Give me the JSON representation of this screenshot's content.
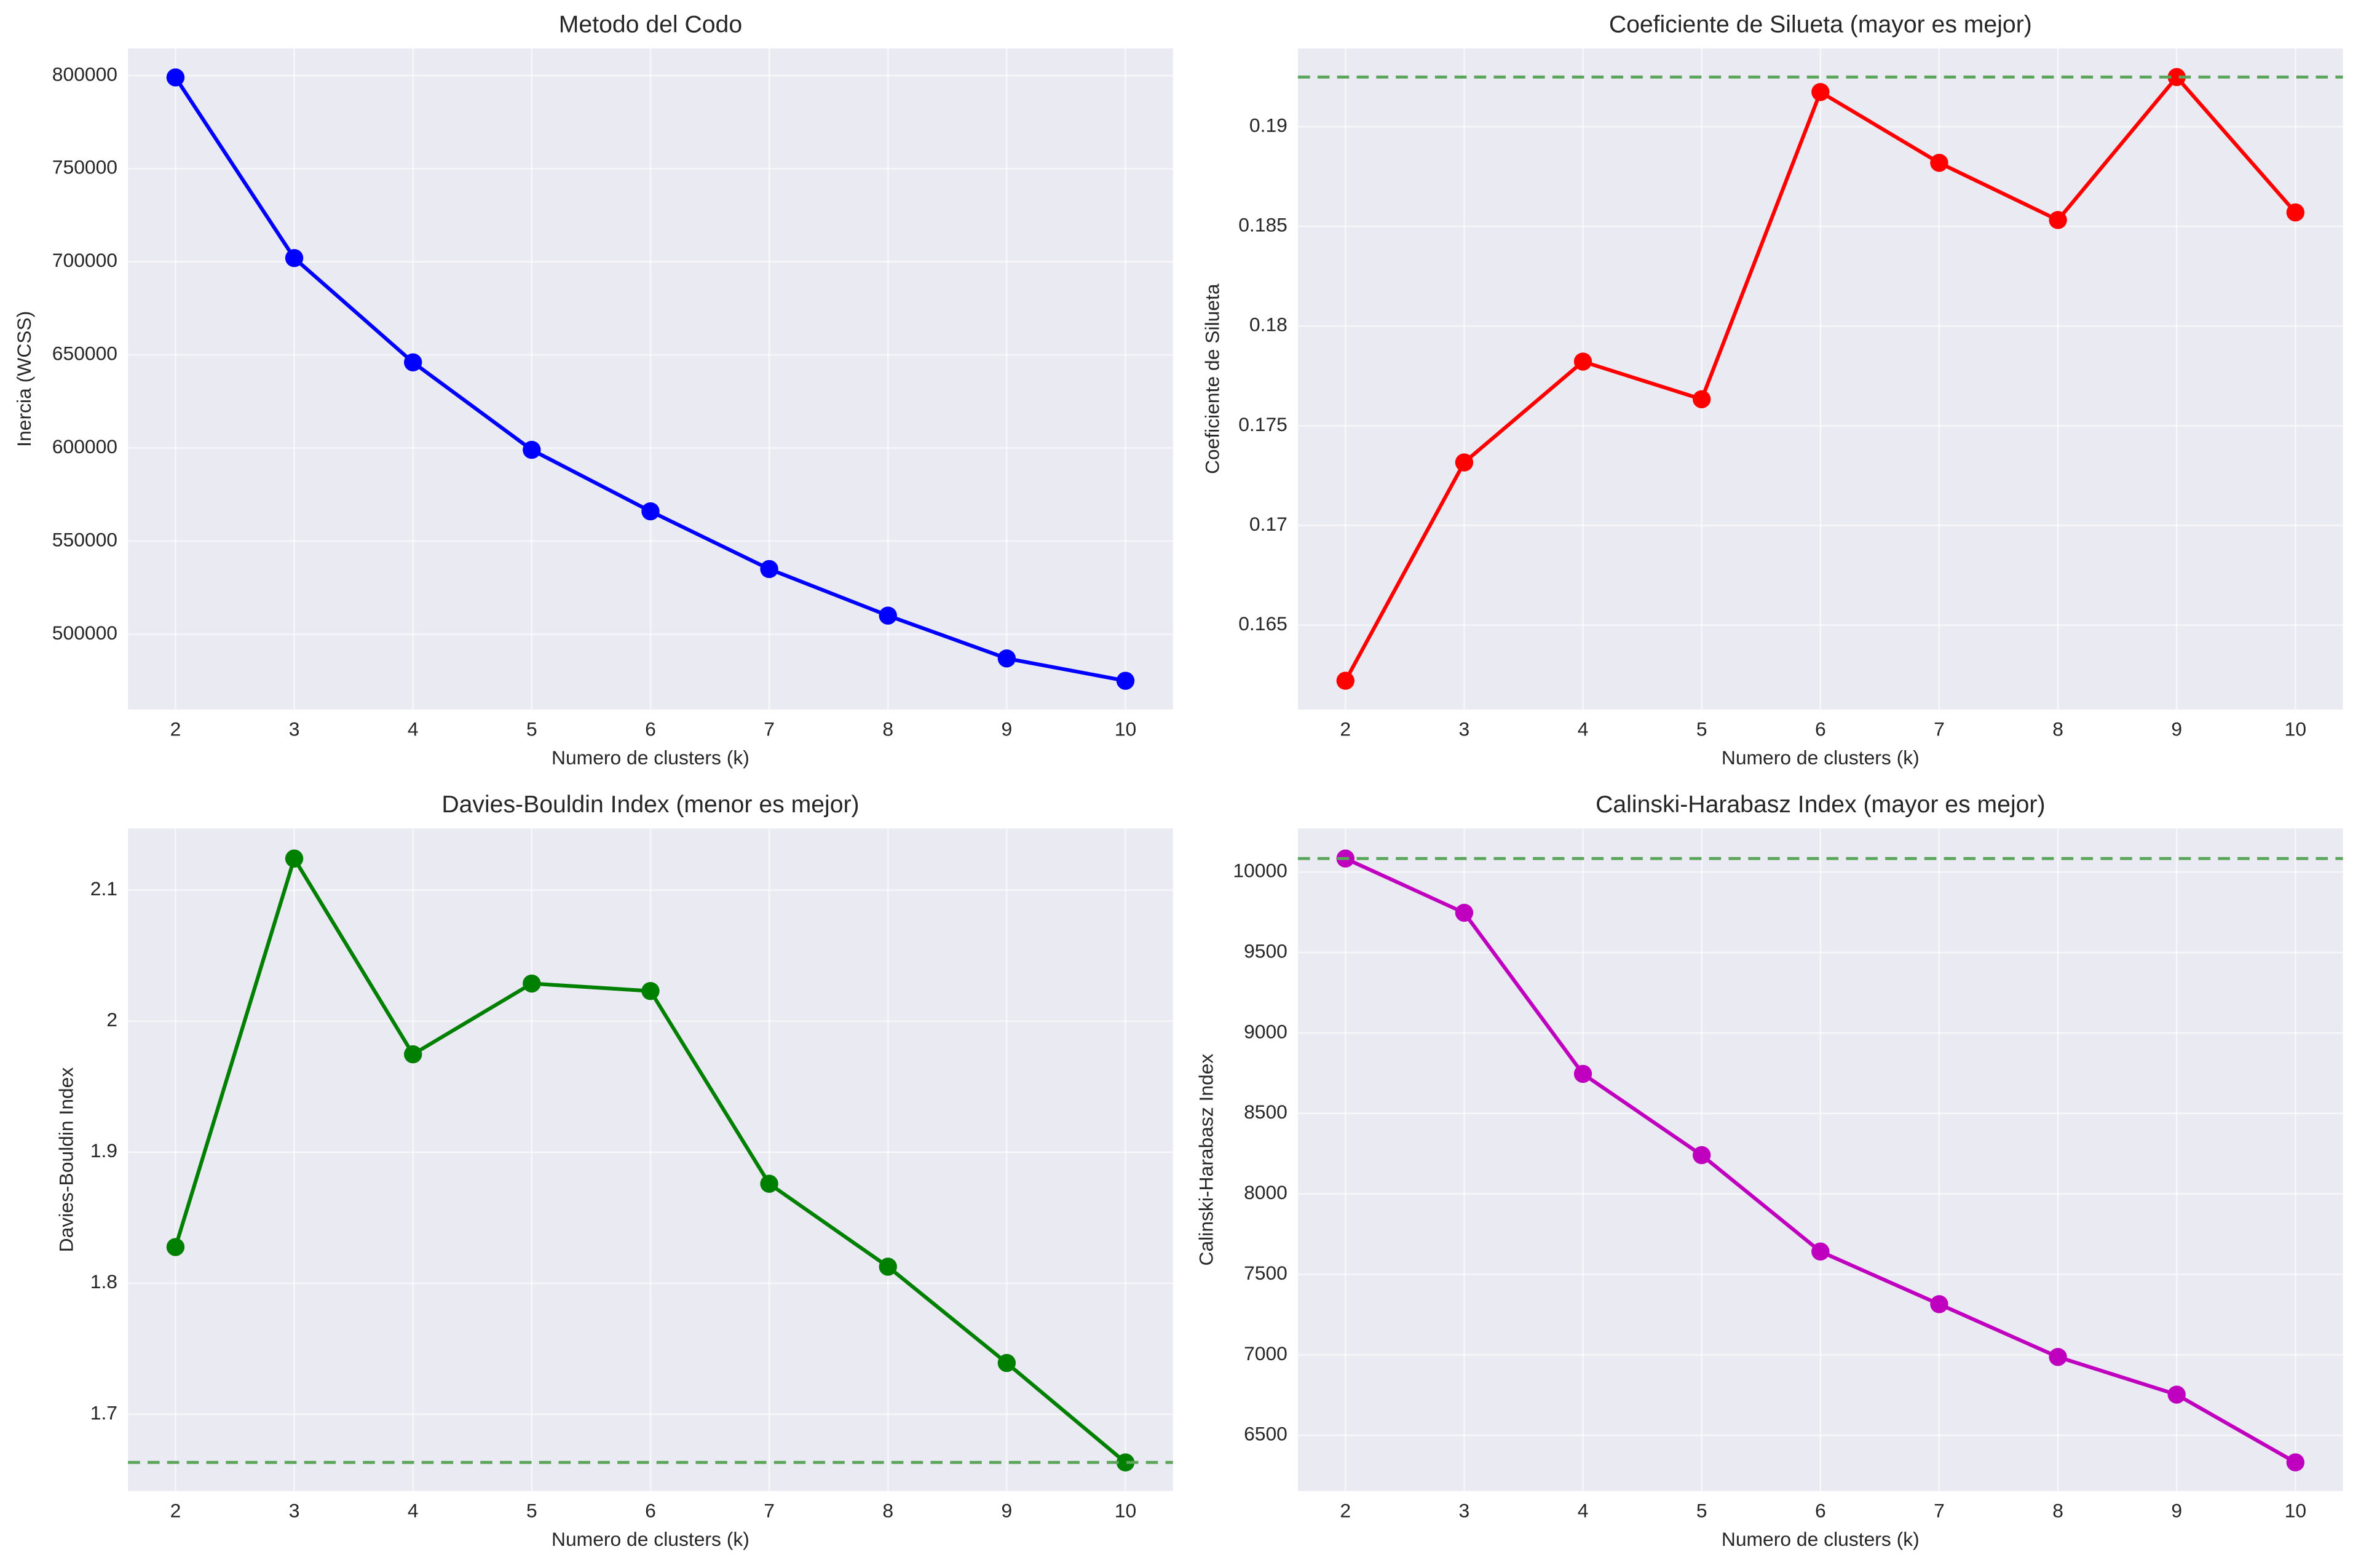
{
  "chart_data": [
    {
      "type": "line",
      "title": "Metodo del Codo",
      "xlabel": "Numero de clusters (k)",
      "ylabel": "Inercia (WCSS)",
      "x": [
        2,
        3,
        4,
        5,
        6,
        7,
        8,
        9,
        10
      ],
      "xlim": [
        1.6,
        10.4
      ],
      "xticks": [
        2,
        3,
        4,
        5,
        6,
        7,
        8,
        9,
        10
      ],
      "ylim": [
        459600,
        814600
      ],
      "yticks": [
        500000,
        550000,
        600000,
        650000,
        700000,
        750000,
        800000
      ],
      "grid": true,
      "series": [
        {
          "color": "#0000ff",
          "values": [
            799000,
            702000,
            646000,
            599000,
            566000,
            535000,
            510000,
            487000,
            475000
          ]
        }
      ]
    },
    {
      "type": "line",
      "title": "Coeficiente de Silueta (mayor es mejor)",
      "xlabel": "Numero de clusters (k)",
      "ylabel": "Coeficiente de Silueta",
      "x": [
        2,
        3,
        4,
        5,
        6,
        7,
        8,
        9,
        10
      ],
      "xlim": [
        1.6,
        10.4
      ],
      "xticks": [
        2,
        3,
        4,
        5,
        6,
        7,
        8,
        9,
        10
      ],
      "ylim": [
        0.16077,
        0.19393
      ],
      "yticks": [
        0.165,
        0.17,
        0.175,
        0.18,
        0.185,
        0.19
      ],
      "grid": true,
      "series": [
        {
          "color": "#ff0000",
          "values": [
            0.16221,
            0.17316,
            0.17822,
            0.17633,
            0.19174,
            0.18819,
            0.18532,
            0.19249,
            0.1857
          ]
        }
      ],
      "reference_line": {
        "value": 0.19249,
        "color": "#5aa55a"
      }
    },
    {
      "type": "line",
      "title": "Davies-Bouldin Index (menor es mejor)",
      "xlabel": "Numero de clusters (k)",
      "ylabel": "Davies-Bouldin Index",
      "x": [
        2,
        3,
        4,
        5,
        6,
        7,
        8,
        9,
        10
      ],
      "xlim": [
        1.6,
        10.4
      ],
      "xticks": [
        2,
        3,
        4,
        5,
        6,
        7,
        8,
        9,
        10
      ],
      "ylim": [
        1.6414,
        2.1471
      ],
      "yticks": [
        1.7,
        1.8,
        1.9,
        2.0,
        2.1
      ],
      "grid": true,
      "series": [
        {
          "color": "#008000",
          "values": [
            1.8276,
            2.1241,
            1.9747,
            2.0287,
            2.023,
            1.8759,
            1.8126,
            1.7391,
            1.6632
          ]
        }
      ],
      "reference_line": {
        "value": 1.6632,
        "color": "#5aa55a"
      }
    },
    {
      "type": "line",
      "title": "Calinski-Harabasz Index (mayor es mejor)",
      "xlabel": "Numero de clusters (k)",
      "ylabel": "Calinski-Harabasz Index",
      "x": [
        2,
        3,
        4,
        5,
        6,
        7,
        8,
        9,
        10
      ],
      "xlim": [
        1.6,
        10.4
      ],
      "xticks": [
        2,
        3,
        4,
        5,
        6,
        7,
        8,
        9,
        10
      ],
      "ylim": [
        6154,
        10271
      ],
      "yticks": [
        6500,
        7000,
        7500,
        8000,
        8500,
        9000,
        9500,
        10000
      ],
      "grid": true,
      "series": [
        {
          "color": "#bf00bf",
          "values": [
            10084,
            9747,
            8746,
            8241,
            7642,
            7315,
            6987,
            6753,
            6332
          ]
        }
      ],
      "reference_line": {
        "value": 10084,
        "color": "#5aa55a"
      }
    }
  ]
}
